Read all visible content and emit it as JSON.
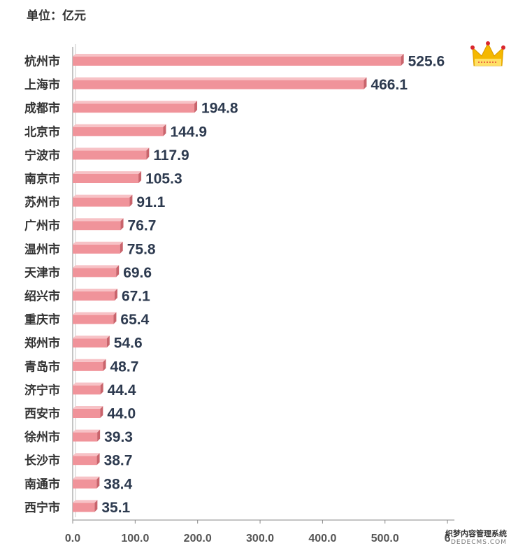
{
  "unit_label": "单位：亿元",
  "crown": {
    "icon": "crown-icon",
    "colors": {
      "gold": "#f5b800",
      "light": "#ffe066",
      "red": "#d9272e"
    }
  },
  "watermark": {
    "line1": "织梦内容管理系统",
    "line2": "DEDECMS.COM"
  },
  "colors": {
    "bar_front": "#f0939a",
    "bar_top": "#f7c2c6",
    "bar_side": "#c9646c",
    "axis": "#888888",
    "label": "#2d3a4f"
  },
  "chart_data": {
    "type": "bar",
    "orientation": "horizontal",
    "categories": [
      "杭州市",
      "上海市",
      "成都市",
      "北京市",
      "宁波市",
      "南京市",
      "苏州市",
      "广州市",
      "温州市",
      "天津市",
      "绍兴市",
      "重庆市",
      "郑州市",
      "青岛市",
      "济宁市",
      "西安市",
      "徐州市",
      "长沙市",
      "南通市",
      "西宁市"
    ],
    "values": [
      525.6,
      466.1,
      194.8,
      144.9,
      117.9,
      105.3,
      91.1,
      76.7,
      75.8,
      69.6,
      67.1,
      65.4,
      54.6,
      48.7,
      44.4,
      44.0,
      39.3,
      38.7,
      38.4,
      35.1
    ],
    "value_labels": [
      "525.6",
      "466.1",
      "194.8",
      "144.9",
      "117.9",
      "105.3",
      "91.1",
      "76.7",
      "75.8",
      "69.6",
      "67.1",
      "65.4",
      "54.6",
      "48.7",
      "44.4",
      "44.0",
      "39.3",
      "38.7",
      "38.4",
      "35.1"
    ],
    "xticks": [
      "0.0",
      "100.0",
      "200.0",
      "300.0",
      "400.0",
      "500.0",
      "6"
    ],
    "xtick_values": [
      0,
      100,
      200,
      300,
      400,
      500,
      600
    ],
    "xlim": [
      0,
      600
    ],
    "style": "3d-bar"
  }
}
